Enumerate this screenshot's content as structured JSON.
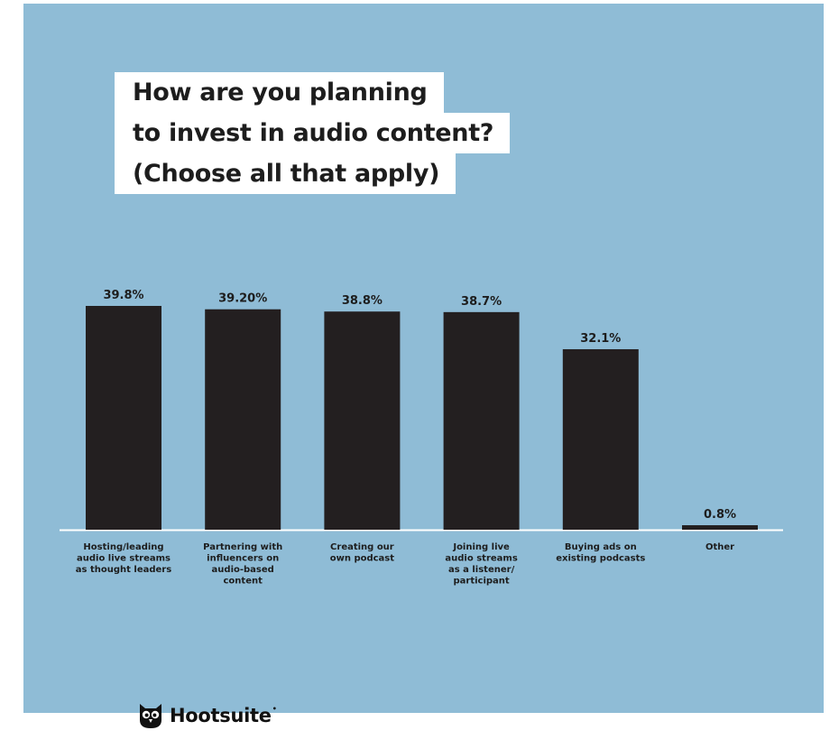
{
  "title_lines": [
    "How are you planning",
    "to invest in audio content?",
    "(Choose all that apply)"
  ],
  "brand": {
    "name": "Hootsuite",
    "icon": "owl-icon"
  },
  "colors": {
    "background": "#8fbcd6",
    "bar": "#231f20",
    "title_box": "#ffffff",
    "baseline": "#ffffff",
    "text": "#1d1d1d"
  },
  "chart_data": {
    "type": "bar",
    "title": "How are you planning to invest in audio content? (Choose all that apply)",
    "xlabel": "",
    "ylabel": "",
    "ylim": [
      0,
      39.8
    ],
    "grid": false,
    "categories": [
      [
        "Hosting/leading",
        "audio live streams",
        "as thought leaders"
      ],
      [
        "Partnering with",
        "influencers on",
        "audio-based",
        "content"
      ],
      [
        "Creating our",
        "own podcast"
      ],
      [
        "Joining live",
        "audio streams",
        "as a listener/",
        "participant"
      ],
      [
        "Buying ads on",
        "existing podcasts"
      ],
      [
        "Other"
      ]
    ],
    "values": [
      39.8,
      39.2,
      38.8,
      38.7,
      32.1,
      0.8
    ],
    "value_labels": [
      "39.8%",
      "39.20%",
      "38.8%",
      "38.7%",
      "32.1%",
      "0.8%"
    ]
  }
}
